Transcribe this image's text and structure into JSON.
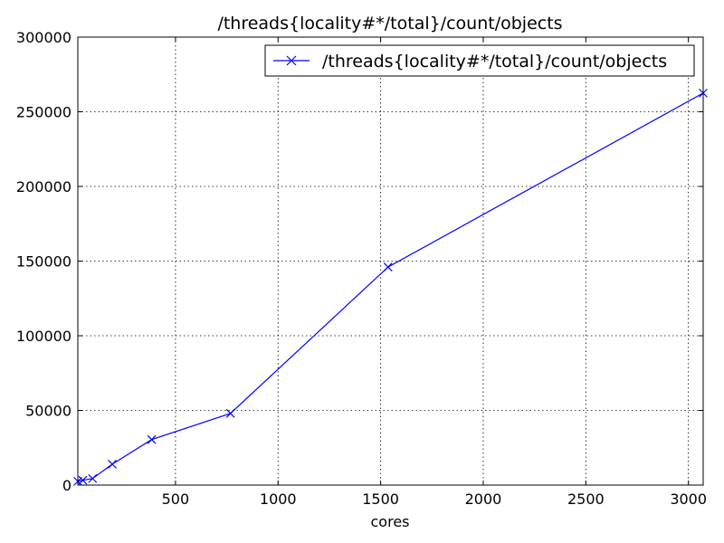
{
  "chart_data": {
    "type": "line",
    "title": "/threads{locality#*/total}/count/objects",
    "xlabel": "cores",
    "ylabel": "",
    "xlim": [
      24,
      3072
    ],
    "ylim": [
      0,
      300000
    ],
    "xticks": [
      500,
      1000,
      1500,
      2000,
      2500,
      3000
    ],
    "yticks": [
      0,
      50000,
      100000,
      150000,
      200000,
      250000,
      300000
    ],
    "grid": true,
    "legend_position": "top-right",
    "series": [
      {
        "name": "/threads{locality#*/total}/count/objects",
        "color": "#0000ff",
        "marker": "x",
        "x": [
          24,
          48,
          96,
          192,
          384,
          768,
          1536,
          3072
        ],
        "y": [
          2500,
          3200,
          4400,
          14000,
          30500,
          48000,
          146000,
          262500
        ]
      }
    ]
  }
}
